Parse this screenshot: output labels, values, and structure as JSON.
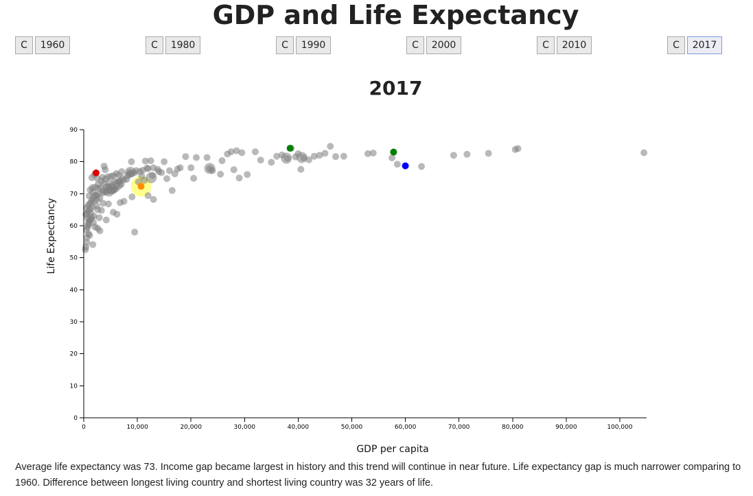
{
  "page": {
    "title": "GDP and Life Expectancy"
  },
  "controls": [
    {
      "c_label": "C",
      "year_label": "1960",
      "active": false
    },
    {
      "c_label": "C",
      "year_label": "1980",
      "active": false
    },
    {
      "c_label": "C",
      "year_label": "1990",
      "active": false
    },
    {
      "c_label": "C",
      "year_label": "2000",
      "active": false
    },
    {
      "c_label": "C",
      "year_label": "2010",
      "active": false
    },
    {
      "c_label": "C",
      "year_label": "2017",
      "active": true
    }
  ],
  "summary": "Average life expectancy was 73. Income gap became largest in history and this trend will continue in near future. Life expectancy gap is much narrower comparing to 1960. Difference between longest living country and shortest living country was 32 years of life.",
  "chart_data": {
    "type": "scatter",
    "title": "2017",
    "xlabel": "GDP per capita",
    "ylabel": "Life Expectancy",
    "xlim": [
      0,
      105000
    ],
    "ylim": [
      0,
      90
    ],
    "xticks": [
      0,
      10000,
      20000,
      30000,
      40000,
      50000,
      60000,
      70000,
      80000,
      90000,
      100000
    ],
    "xtick_labels": [
      "0",
      "10,000",
      "20,000",
      "30,000",
      "40,000",
      "50,000",
      "60,000",
      "70,000",
      "80,000",
      "90,000",
      "100,000"
    ],
    "yticks": [
      0,
      10,
      20,
      30,
      40,
      50,
      60,
      70,
      80,
      90
    ],
    "ytick_labels": [
      "0",
      "10",
      "20",
      "30",
      "40",
      "50",
      "60",
      "70",
      "80",
      "90"
    ],
    "grid": false,
    "colors": {
      "default": "#808080",
      "red": "#e00000",
      "green": "#008000",
      "blue": "#0000ff",
      "orange": "#ff8c00",
      "halo": "#ffff66"
    },
    "highlights": [
      {
        "x": 2300,
        "y": 76.5,
        "color": "red"
      },
      {
        "x": 38500,
        "y": 84.2,
        "color": "green"
      },
      {
        "x": 57800,
        "y": 83.0,
        "color": "green"
      },
      {
        "x": 60000,
        "y": 78.7,
        "color": "blue"
      },
      {
        "x": 10700,
        "y": 72.3,
        "color": "orange",
        "halo": true
      }
    ],
    "points": [
      [
        300,
        52.5
      ],
      [
        400,
        53.3
      ],
      [
        600,
        54.8
      ],
      [
        900,
        57.5
      ],
      [
        500,
        58.7
      ],
      [
        700,
        59.5
      ],
      [
        800,
        60.5
      ],
      [
        1000,
        61.2
      ],
      [
        1100,
        61.8
      ],
      [
        1300,
        62.0
      ],
      [
        1500,
        62.6
      ],
      [
        400,
        63.5
      ],
      [
        600,
        63.8
      ],
      [
        900,
        64.5
      ],
      [
        1200,
        65.2
      ],
      [
        1600,
        65.8
      ],
      [
        800,
        66.3
      ],
      [
        1100,
        66.9
      ],
      [
        1400,
        67.3
      ],
      [
        2000,
        67.8
      ],
      [
        2500,
        68.2
      ],
      [
        3000,
        68.6
      ],
      [
        1800,
        69.0
      ],
      [
        2200,
        69.5
      ],
      [
        2800,
        70.0
      ],
      [
        3500,
        70.2
      ],
      [
        4000,
        70.5
      ],
      [
        4500,
        70.8
      ],
      [
        5000,
        71.1
      ],
      [
        5500,
        71.3
      ],
      [
        6000,
        71.5
      ],
      [
        3200,
        71.8
      ],
      [
        4200,
        72.1
      ],
      [
        5200,
        72.4
      ],
      [
        6200,
        72.6
      ],
      [
        7000,
        72.9
      ],
      [
        3800,
        73.2
      ],
      [
        4800,
        73.5
      ],
      [
        5800,
        73.8
      ],
      [
        6800,
        74.0
      ],
      [
        7500,
        74.3
      ],
      [
        8000,
        74.5
      ],
      [
        2500,
        74.8
      ],
      [
        3500,
        75.1
      ],
      [
        4500,
        75.3
      ],
      [
        5500,
        75.6
      ],
      [
        6500,
        75.8
      ],
      [
        8500,
        76.1
      ],
      [
        9000,
        76.3
      ],
      [
        9500,
        76.6
      ],
      [
        10500,
        76.9
      ],
      [
        11000,
        77.3
      ],
      [
        4000,
        77.5
      ],
      [
        12000,
        77.8
      ],
      [
        13000,
        78.1
      ],
      [
        3800,
        78.6
      ],
      [
        8900,
        80.0
      ],
      [
        11500,
        80.2
      ],
      [
        1200,
        71.2
      ],
      [
        1700,
        70.5
      ],
      [
        2100,
        72.0
      ],
      [
        2700,
        73.0
      ],
      [
        3300,
        74.0
      ],
      [
        1500,
        75.0
      ],
      [
        2000,
        76.0
      ],
      [
        2600,
        65.0
      ],
      [
        1900,
        63.0
      ],
      [
        3300,
        64.8
      ],
      [
        4200,
        61.8
      ],
      [
        2600,
        59.2
      ],
      [
        3000,
        58.4
      ],
      [
        1700,
        54.1
      ],
      [
        9500,
        58.0
      ],
      [
        7500,
        67.6
      ],
      [
        6800,
        67.2
      ],
      [
        4600,
        66.8
      ],
      [
        5500,
        64.2
      ],
      [
        6200,
        63.6
      ],
      [
        9000,
        69.0
      ],
      [
        12000,
        69.4
      ],
      [
        13000,
        68.2
      ],
      [
        14500,
        76.6
      ],
      [
        15500,
        74.7
      ],
      [
        16000,
        77.2
      ],
      [
        16500,
        71.0
      ],
      [
        17000,
        76.2
      ],
      [
        17500,
        77.7
      ],
      [
        18000,
        78.1
      ],
      [
        14000,
        76.9
      ],
      [
        15000,
        80.0
      ],
      [
        12500,
        80.3
      ],
      [
        11800,
        78.0
      ],
      [
        10800,
        75.5
      ],
      [
        19000,
        81.6
      ],
      [
        20000,
        78.1
      ],
      [
        20500,
        74.8
      ],
      [
        21000,
        81.3
      ],
      [
        23000,
        81.3
      ],
      [
        23500,
        77.8
      ],
      [
        24000,
        77.2
      ],
      [
        25500,
        76.1
      ],
      [
        25800,
        80.3
      ],
      [
        26800,
        82.4
      ],
      [
        27500,
        83.1
      ],
      [
        28000,
        77.5
      ],
      [
        28500,
        83.4
      ],
      [
        29000,
        74.9
      ],
      [
        29500,
        82.8
      ],
      [
        30500,
        76.0
      ],
      [
        32000,
        83.1
      ],
      [
        33000,
        80.5
      ],
      [
        35000,
        79.8
      ],
      [
        36000,
        81.7
      ],
      [
        37000,
        82.1
      ],
      [
        38000,
        81.0
      ],
      [
        38700,
        84.2
      ],
      [
        39500,
        81.5
      ],
      [
        40000,
        82.5
      ],
      [
        40500,
        77.6
      ],
      [
        41000,
        81.2
      ],
      [
        42000,
        80.6
      ],
      [
        43000,
        81.7
      ],
      [
        44000,
        82.0
      ],
      [
        45000,
        82.6
      ],
      [
        46000,
        84.8
      ],
      [
        47000,
        81.6
      ],
      [
        48500,
        81.7
      ],
      [
        53000,
        82.5
      ],
      [
        54000,
        82.7
      ],
      [
        57500,
        81.2
      ],
      [
        58500,
        79.2
      ],
      [
        63000,
        78.5
      ],
      [
        69000,
        82.0
      ],
      [
        71500,
        82.3
      ],
      [
        75500,
        82.6
      ],
      [
        80500,
        83.8
      ],
      [
        81000,
        84.1
      ],
      [
        104500,
        82.8
      ],
      [
        1000,
        69.3
      ],
      [
        1500,
        68.0
      ],
      [
        2300,
        69.5
      ],
      [
        3700,
        71.0
      ],
      [
        4600,
        72.2
      ],
      [
        5600,
        71.0
      ],
      [
        6500,
        73.7
      ],
      [
        7200,
        74.8
      ],
      [
        8200,
        75.6
      ],
      [
        900,
        60.2
      ],
      [
        700,
        62.3
      ],
      [
        1300,
        64.0
      ],
      [
        1800,
        61.0
      ],
      [
        2100,
        59.6
      ],
      [
        1100,
        57.0
      ],
      [
        600,
        56.3
      ],
      [
        2900,
        62.5
      ],
      [
        3600,
        67.0
      ],
      [
        2400,
        66.2
      ],
      [
        500,
        65.5
      ],
      [
        1600,
        71.9
      ],
      [
        2700,
        71.7
      ],
      [
        4100,
        74.6
      ],
      [
        5100,
        75.4
      ],
      [
        6100,
        76.3
      ],
      [
        7100,
        76.9
      ],
      [
        8600,
        76.7
      ],
      [
        9800,
        77.2
      ],
      [
        10200,
        73.7
      ],
      [
        11300,
        74.2
      ],
      [
        12800,
        75.7
      ],
      [
        13800,
        77.6
      ]
    ],
    "large_points": [
      [
        5200,
        71.5
      ],
      [
        4700,
        70.8
      ],
      [
        6300,
        72.8
      ],
      [
        8700,
        76.7
      ],
      [
        12600,
        75.0
      ],
      [
        40700,
        81.3
      ],
      [
        23500,
        77.9
      ],
      [
        37800,
        81.1
      ]
    ]
  }
}
